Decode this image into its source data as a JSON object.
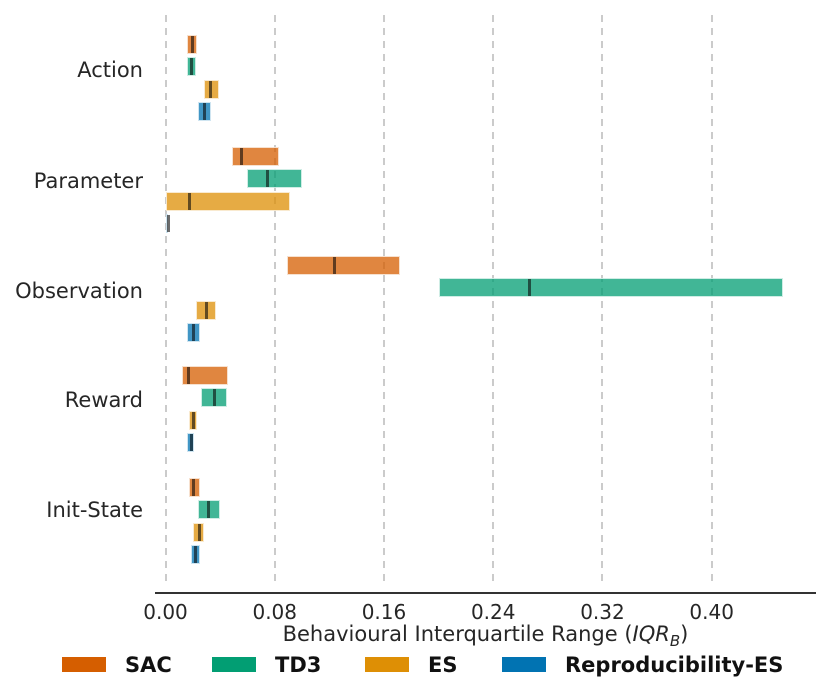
{
  "chart_data": {
    "type": "bar",
    "subtype": "horizontal-iqr-range-bars-with-median",
    "title": "",
    "xlabel_parts": {
      "prefix": "Behavioural Interquartile Range (",
      "italic": "IQR",
      "subscript": "B",
      "suffix": ")"
    },
    "ylabel": "",
    "xlim": [
      0.0,
      0.475
    ],
    "grid": "vertical-dashed",
    "legend_position": "bottom",
    "xticks": [
      0.0,
      0.08,
      0.16,
      0.24,
      0.32,
      0.4
    ],
    "xtick_labels": [
      "0.00",
      "0.08",
      "0.16",
      "0.24",
      "0.32",
      "0.40"
    ],
    "categories": [
      "Action",
      "Parameter",
      "Observation",
      "Reward",
      "Init-State"
    ],
    "value_format": "[q1, median, q3]",
    "series": [
      {
        "name": "SAC",
        "color": "#D55E00",
        "values": [
          [
            0.016,
            0.019,
            0.023
          ],
          [
            0.049,
            0.055,
            0.083
          ],
          [
            0.089,
            0.123,
            0.172
          ],
          [
            0.012,
            0.016,
            0.046
          ],
          [
            0.017,
            0.02,
            0.025
          ]
        ]
      },
      {
        "name": "TD3",
        "color": "#029E73",
        "values": [
          [
            0.016,
            0.018,
            0.022
          ],
          [
            0.06,
            0.074,
            0.1
          ],
          [
            0.2,
            0.266,
            0.452
          ],
          [
            0.026,
            0.035,
            0.045
          ],
          [
            0.024,
            0.031,
            0.04
          ]
        ]
      },
      {
        "name": "ES",
        "color": "#DE8F05",
        "values": [
          [
            0.028,
            0.032,
            0.039
          ],
          [
            0.0,
            0.017,
            0.091
          ],
          [
            0.022,
            0.029,
            0.037
          ],
          [
            0.017,
            0.02,
            0.023
          ],
          [
            0.02,
            0.024,
            0.028
          ]
        ]
      },
      {
        "name": "Reproducibility-ES",
        "color": "#0173B2",
        "values": [
          [
            0.024,
            0.028,
            0.033
          ],
          [
            0.0,
            0.001,
            0.002
          ],
          [
            0.016,
            0.02,
            0.025
          ],
          [
            0.016,
            0.018,
            0.021
          ],
          [
            0.019,
            0.021,
            0.025
          ]
        ]
      }
    ],
    "legend_entries": [
      "SAC",
      "TD3",
      "ES",
      "Reproducibility-ES"
    ],
    "bar_alpha": 0.75,
    "median_color": "rgba(10,10,10,0.60)"
  }
}
